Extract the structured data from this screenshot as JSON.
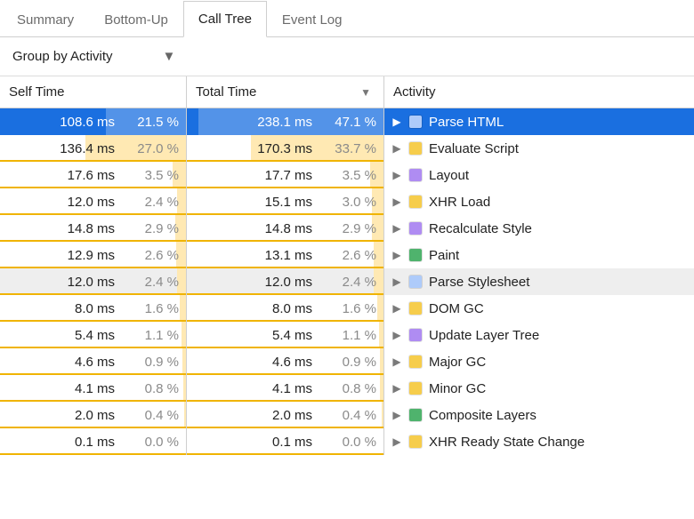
{
  "tabs": [
    {
      "label": "Summary",
      "active": false
    },
    {
      "label": "Bottom-Up",
      "active": false
    },
    {
      "label": "Call Tree",
      "active": true
    },
    {
      "label": "Event Log",
      "active": false
    }
  ],
  "group_by": {
    "label": "Group by Activity"
  },
  "columns": {
    "self": {
      "label": "Self Time",
      "sorted": false
    },
    "total": {
      "label": "Total Time",
      "sorted": true
    },
    "activity": {
      "label": "Activity"
    }
  },
  "palette": {
    "bar_fill": "#ffe9b3",
    "bar_underline": "#f0b400",
    "selected_row": "#1a6fe0",
    "alt_row": "#eeeeee",
    "text_muted": "#8a8a8a",
    "border": "#cfcfcf"
  },
  "activity_colors": {
    "parse_html": "#aecbfa",
    "script": "#f6cd4c",
    "layout": "#af8cf2",
    "paint": "#4fb36d",
    "stylesheet": "#aecbfa"
  },
  "max_pct_scale": 50,
  "rows": [
    {
      "self_ms": "108.6 ms",
      "self_pct": "21.5 %",
      "self_pct_n": 21.5,
      "total_ms": "238.1 ms",
      "total_pct": "47.1 %",
      "total_pct_n": 47.1,
      "activity": "Parse HTML",
      "swatch": "parse_html",
      "state": "selected"
    },
    {
      "self_ms": "136.4 ms",
      "self_pct": "27.0 %",
      "self_pct_n": 27.0,
      "total_ms": "170.3 ms",
      "total_pct": "33.7 %",
      "total_pct_n": 33.7,
      "activity": "Evaluate Script",
      "swatch": "script",
      "state": "normal"
    },
    {
      "self_ms": "17.6 ms",
      "self_pct": "3.5 %",
      "self_pct_n": 3.5,
      "total_ms": "17.7 ms",
      "total_pct": "3.5 %",
      "total_pct_n": 3.5,
      "activity": "Layout",
      "swatch": "layout",
      "state": "normal"
    },
    {
      "self_ms": "12.0 ms",
      "self_pct": "2.4 %",
      "self_pct_n": 2.4,
      "total_ms": "15.1 ms",
      "total_pct": "3.0 %",
      "total_pct_n": 3.0,
      "activity": "XHR Load",
      "swatch": "script",
      "state": "normal"
    },
    {
      "self_ms": "14.8 ms",
      "self_pct": "2.9 %",
      "self_pct_n": 2.9,
      "total_ms": "14.8 ms",
      "total_pct": "2.9 %",
      "total_pct_n": 2.9,
      "activity": "Recalculate Style",
      "swatch": "layout",
      "state": "normal"
    },
    {
      "self_ms": "12.9 ms",
      "self_pct": "2.6 %",
      "self_pct_n": 2.6,
      "total_ms": "13.1 ms",
      "total_pct": "2.6 %",
      "total_pct_n": 2.6,
      "activity": "Paint",
      "swatch": "paint",
      "state": "normal"
    },
    {
      "self_ms": "12.0 ms",
      "self_pct": "2.4 %",
      "self_pct_n": 2.4,
      "total_ms": "12.0 ms",
      "total_pct": "2.4 %",
      "total_pct_n": 2.4,
      "activity": "Parse Stylesheet",
      "swatch": "stylesheet",
      "state": "hover"
    },
    {
      "self_ms": "8.0 ms",
      "self_pct": "1.6 %",
      "self_pct_n": 1.6,
      "total_ms": "8.0 ms",
      "total_pct": "1.6 %",
      "total_pct_n": 1.6,
      "activity": "DOM GC",
      "swatch": "script",
      "state": "normal"
    },
    {
      "self_ms": "5.4 ms",
      "self_pct": "1.1 %",
      "self_pct_n": 1.1,
      "total_ms": "5.4 ms",
      "total_pct": "1.1 %",
      "total_pct_n": 1.1,
      "activity": "Update Layer Tree",
      "swatch": "layout",
      "state": "normal"
    },
    {
      "self_ms": "4.6 ms",
      "self_pct": "0.9 %",
      "self_pct_n": 0.9,
      "total_ms": "4.6 ms",
      "total_pct": "0.9 %",
      "total_pct_n": 0.9,
      "activity": "Major GC",
      "swatch": "script",
      "state": "normal"
    },
    {
      "self_ms": "4.1 ms",
      "self_pct": "0.8 %",
      "self_pct_n": 0.8,
      "total_ms": "4.1 ms",
      "total_pct": "0.8 %",
      "total_pct_n": 0.8,
      "activity": "Minor GC",
      "swatch": "script",
      "state": "normal"
    },
    {
      "self_ms": "2.0 ms",
      "self_pct": "0.4 %",
      "self_pct_n": 0.4,
      "total_ms": "2.0 ms",
      "total_pct": "0.4 %",
      "total_pct_n": 0.4,
      "activity": "Composite Layers",
      "swatch": "paint",
      "state": "normal"
    },
    {
      "self_ms": "0.1 ms",
      "self_pct": "0.0 %",
      "self_pct_n": 0.0,
      "total_ms": "0.1 ms",
      "total_pct": "0.0 %",
      "total_pct_n": 0.0,
      "activity": "XHR Ready State Change",
      "swatch": "script",
      "state": "normal"
    }
  ]
}
